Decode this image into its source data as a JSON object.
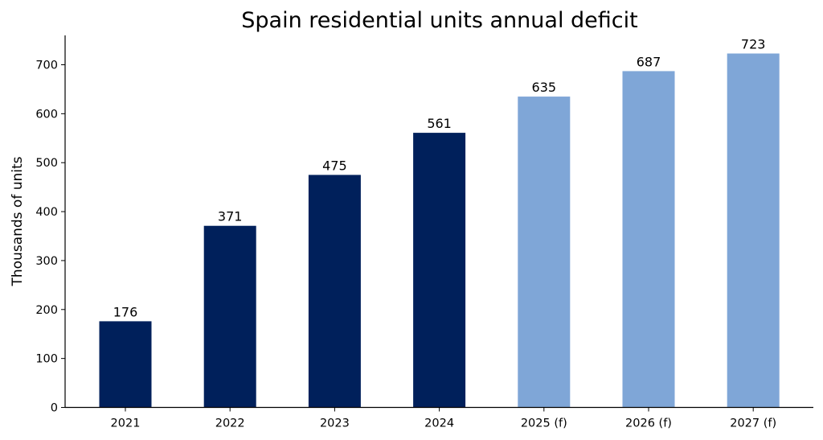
{
  "chart_data": {
    "type": "bar",
    "title": "Spain residential units annual deficit",
    "xlabel": "",
    "ylabel": "Thousands of units",
    "categories": [
      "2021",
      "2022",
      "2023",
      "2024",
      "2025 (f)",
      "2026 (f)",
      "2027 (f)"
    ],
    "values": [
      176,
      371,
      475,
      561,
      635,
      687,
      723
    ],
    "forecast": [
      false,
      false,
      false,
      false,
      true,
      true,
      true
    ],
    "data_labels": [
      "176",
      "371",
      "475",
      "561",
      "635",
      "687",
      "723"
    ],
    "ylim": [
      0,
      760
    ],
    "yticks": [
      0,
      100,
      200,
      300,
      400,
      500,
      600,
      700
    ],
    "grid": false,
    "legend": "none",
    "colors": {
      "actual": "#00205b",
      "forecast": "#7fa6d7"
    }
  }
}
